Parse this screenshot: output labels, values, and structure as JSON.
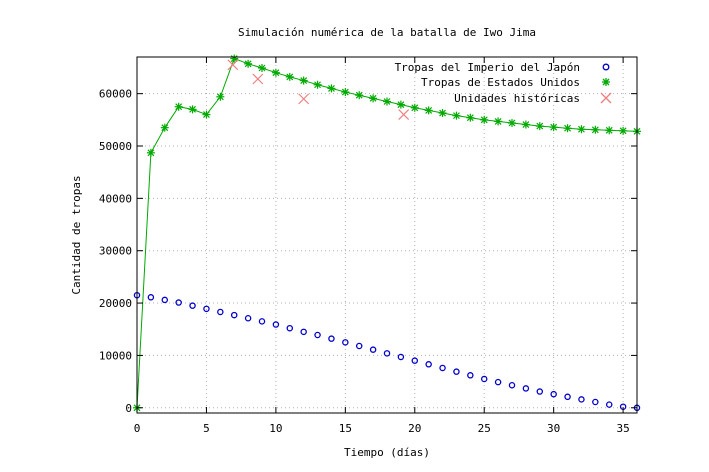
{
  "chart_data": {
    "type": "line",
    "title": "Simulación numérica de la batalla de Iwo Jima",
    "xlabel": "Tiempo (días)",
    "ylabel": "Cantidad de tropas",
    "xlim": [
      0,
      36
    ],
    "ylim": [
      -1000,
      67000
    ],
    "xticks": [
      0,
      5,
      10,
      15,
      20,
      25,
      30,
      35
    ],
    "yticks": [
      0,
      10000,
      20000,
      30000,
      40000,
      50000,
      60000
    ],
    "grid": true,
    "legend_position": "top-right",
    "series": [
      {
        "name": "Tropas del Imperio del Japón",
        "marker": "circle",
        "color": "#0000cc",
        "line": false,
        "x": [
          0,
          1,
          2,
          3,
          4,
          5,
          6,
          7,
          8,
          9,
          10,
          11,
          12,
          13,
          14,
          15,
          16,
          17,
          18,
          19,
          20,
          21,
          22,
          23,
          24,
          25,
          26,
          27,
          28,
          29,
          30,
          31,
          32,
          33,
          34,
          35,
          36
        ],
        "y": [
          21500,
          21100,
          20600,
          20100,
          19500,
          18900,
          18300,
          17700,
          17100,
          16500,
          15900,
          15200,
          14500,
          13900,
          13200,
          12500,
          11800,
          11100,
          10400,
          9700,
          9000,
          8300,
          7600,
          6900,
          6200,
          5500,
          4900,
          4300,
          3700,
          3100,
          2600,
          2100,
          1600,
          1100,
          600,
          200,
          0
        ]
      },
      {
        "name": "Tropas de Estados Unidos",
        "marker": "asterisk",
        "color": "#00aa00",
        "line": true,
        "x": [
          0,
          1,
          2,
          3,
          4,
          5,
          6,
          7,
          8,
          9,
          10,
          11,
          12,
          13,
          14,
          15,
          16,
          17,
          18,
          19,
          20,
          21,
          22,
          23,
          24,
          25,
          26,
          27,
          28,
          29,
          30,
          31,
          32,
          33,
          34,
          35,
          36
        ],
        "y": [
          0,
          48700,
          53500,
          57500,
          57000,
          56000,
          59400,
          66700,
          65700,
          64900,
          64000,
          63200,
          62500,
          61700,
          61000,
          60300,
          59700,
          59100,
          58500,
          57900,
          57300,
          56800,
          56300,
          55800,
          55400,
          55000,
          54700,
          54400,
          54100,
          53800,
          53600,
          53400,
          53200,
          53100,
          53000,
          52900,
          52800
        ]
      },
      {
        "name": "Unidades históricas",
        "marker": "cross",
        "color": "#f08080",
        "line": false,
        "x": [
          6.9,
          8.7,
          12.0,
          19.2
        ],
        "y": [
          65500,
          62800,
          59000,
          56000
        ]
      }
    ]
  }
}
